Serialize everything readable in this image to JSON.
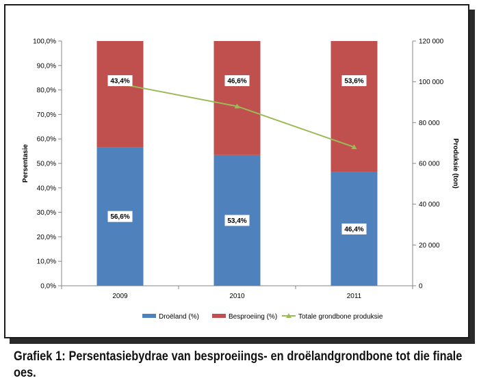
{
  "caption": "Grafiek 1: Persentasiebydrae van besproeiings- en droëlandgrondbone tot die finale oes.",
  "chart_data": {
    "type": "bar",
    "stacked": true,
    "categories": [
      "2009",
      "2010",
      "2011"
    ],
    "series": [
      {
        "name": "Droëland (%)",
        "values": [
          56.6,
          53.4,
          46.4
        ],
        "labels": [
          "56,6%",
          "53,4%",
          "46,4%"
        ],
        "color": "#4f81bd"
      },
      {
        "name": "Besproeiing (%)",
        "values": [
          43.4,
          46.6,
          53.6
        ],
        "labels": [
          "43,4%",
          "46,6%",
          "53,6%"
        ],
        "color": "#c0504d"
      }
    ],
    "line_series": {
      "name": "Totale grondbone produksie",
      "values": [
        99000,
        88000,
        68000
      ],
      "color": "#9bbb59",
      "axis": "right"
    },
    "ylabel": "Persentasie",
    "ylabel_right": "Produksie (ton)",
    "ylim": [
      0,
      100
    ],
    "ylim_right": [
      0,
      120000
    ],
    "yticks": [
      "0,0%",
      "10,0%",
      "20,0%",
      "30,0%",
      "40,0%",
      "50,0%",
      "60,0%",
      "70,0%",
      "80,0%",
      "90,0%",
      "100,0%"
    ],
    "yticks_right": [
      "0",
      "20 000",
      "40 000",
      "60 000",
      "80 000",
      "100 000",
      "120 000"
    ],
    "grid": false,
    "legend_position": "bottom"
  }
}
